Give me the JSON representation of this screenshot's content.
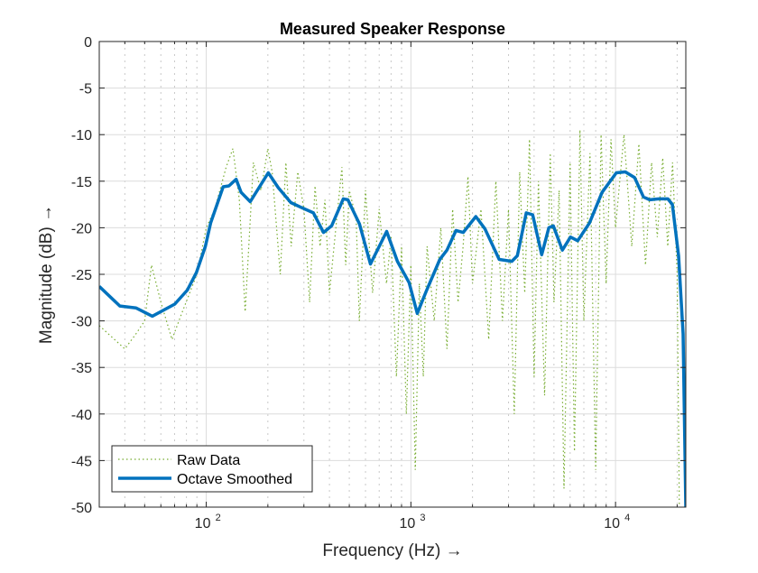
{
  "chart_data": {
    "type": "line",
    "title": "Measured Speaker Response",
    "xlabel": "Frequency  (Hz)  →",
    "ylabel": "Magnitude  (dB)  →",
    "x_scale": "log",
    "xlim": [
      30,
      22050
    ],
    "ylim": [
      -50,
      0
    ],
    "x_ticks": [
      100,
      1000,
      10000
    ],
    "x_tick_labels": [
      {
        "base": "10",
        "exp": "2"
      },
      {
        "base": "10",
        "exp": "3"
      },
      {
        "base": "10",
        "exp": "4"
      }
    ],
    "y_ticks": [
      0,
      -5,
      -10,
      -15,
      -20,
      -25,
      -30,
      -35,
      -40,
      -45,
      -50
    ],
    "y_tick_labels": [
      "0",
      "-5",
      "-10",
      "-15",
      "-20",
      "-25",
      "-30",
      "-35",
      "-40",
      "-45",
      "-50"
    ],
    "grid": true,
    "minor_grid": true,
    "legend_position": "bottom-left",
    "series": [
      {
        "name": "Raw Data",
        "color": "#77AC30",
        "style": "dotted",
        "x": [
          30,
          40,
          45,
          50,
          54,
          60,
          68,
          75,
          90,
          100,
          110,
          125,
          135,
          145,
          155,
          170,
          185,
          200,
          210,
          230,
          245,
          260,
          280,
          300,
          320,
          340,
          360,
          380,
          400,
          430,
          460,
          480,
          500,
          540,
          560,
          600,
          650,
          700,
          760,
          800,
          850,
          900,
          950,
          1000,
          1050,
          1100,
          1150,
          1200,
          1300,
          1400,
          1500,
          1600,
          1700,
          1800,
          1900,
          2000,
          2200,
          2400,
          2600,
          2800,
          3000,
          3200,
          3400,
          3600,
          3800,
          4000,
          4200,
          4500,
          4800,
          5000,
          5300,
          5600,
          6000,
          6300,
          6700,
          7000,
          7500,
          8000,
          8500,
          9000,
          9500,
          10000,
          11000,
          12000,
          13000,
          14000,
          15000,
          16000,
          17000,
          18000,
          19000,
          20000,
          20500
        ],
        "y": [
          -30.5,
          -33,
          -31.5,
          -30,
          -24,
          -28,
          -32,
          -29.5,
          -25,
          -20,
          -18,
          -13.5,
          -11.5,
          -17,
          -29,
          -13,
          -16,
          -11.5,
          -14,
          -25,
          -13,
          -22,
          -14,
          -18,
          -28,
          -15.5,
          -22,
          -17,
          -27,
          -20,
          -13.5,
          -24,
          -16,
          -19,
          -30,
          -16,
          -27,
          -18,
          -26,
          -21,
          -36,
          -22,
          -40,
          -24,
          -46,
          -26,
          -36,
          -22,
          -30,
          -20,
          -33,
          -18,
          -28,
          -22,
          -14.5,
          -26,
          -18,
          -32,
          -15,
          -30,
          -18,
          -40,
          -14,
          -27,
          -10.5,
          -36,
          -15,
          -38,
          -12,
          -28,
          -16,
          -48,
          -13,
          -44,
          -9.5,
          -30,
          -12,
          -46,
          -10,
          -26,
          -10.5,
          -20,
          -10,
          -22,
          -11,
          -24,
          -13,
          -21,
          -12.5,
          -22,
          -13,
          -25,
          -50
        ]
      },
      {
        "name": "Octave Smoothed",
        "color": "#0072BD",
        "style": "solid",
        "x": [
          30,
          37.8,
          45.3,
          54.5,
          70.2,
          80.8,
          89.5,
          99,
          105,
          121,
          129,
          140,
          148,
          164,
          201,
          225,
          259,
          290,
          334,
          374,
          410,
          467,
          492,
          561,
          634,
          761,
          859,
          980,
          1074,
          1189,
          1384,
          1500,
          1660,
          1802,
          2076,
          2298,
          2702,
          3114,
          3311,
          3664,
          3937,
          4356,
          4723,
          4969,
          5500,
          6024,
          6535,
          7452,
          8590,
          10090,
          11170,
          12380,
          13700,
          14690,
          16260,
          18020,
          18950,
          20330,
          21390,
          22050
        ],
        "y": [
          -26.3,
          -28.4,
          -28.6,
          -29.5,
          -28.2,
          -26.7,
          -24.8,
          -22.0,
          -19.5,
          -15.6,
          -15.5,
          -14.8,
          -16.2,
          -17.2,
          -14.1,
          -15.7,
          -17.3,
          -17.8,
          -18.4,
          -20.5,
          -19.8,
          -16.9,
          -17.0,
          -19.6,
          -23.9,
          -20.4,
          -23.6,
          -25.9,
          -29.2,
          -26.8,
          -23.4,
          -22.4,
          -20.3,
          -20.5,
          -18.8,
          -20.1,
          -23.4,
          -23.6,
          -23.0,
          -18.4,
          -18.6,
          -22.9,
          -20.0,
          -19.8,
          -22.4,
          -21.0,
          -21.4,
          -19.5,
          -16.2,
          -14.1,
          -14.0,
          -14.6,
          -16.7,
          -17.0,
          -16.9,
          -16.9,
          -17.5,
          -23.0,
          -31.4,
          -50
        ]
      }
    ]
  }
}
